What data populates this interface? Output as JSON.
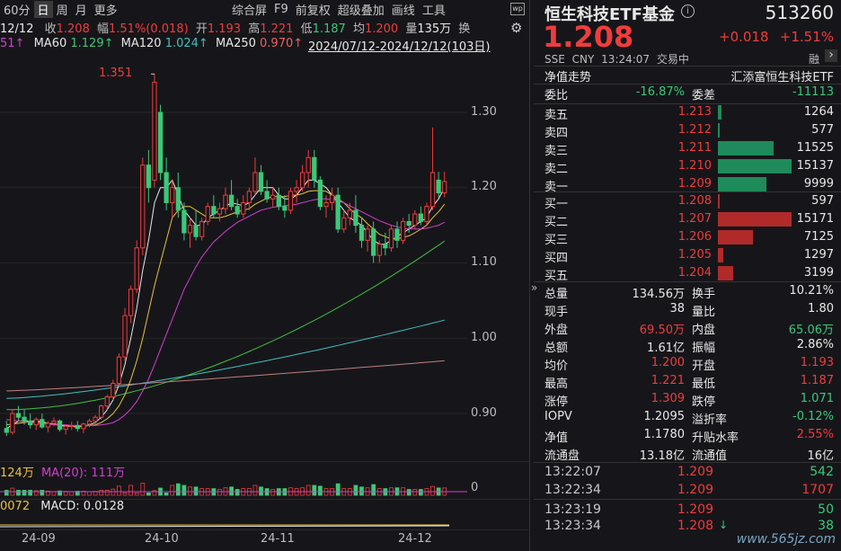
{
  "toolbar": {
    "period": "60分",
    "items": [
      "日",
      "周",
      "月",
      "更多"
    ],
    "right_items": [
      "综合屏",
      "F9",
      "前复权",
      "超级叠加",
      "画线",
      "工具"
    ],
    "badge_icon": "wp-badge-icon",
    "settings_icon": "gear-icon"
  },
  "quote_row": {
    "date": "12/12",
    "close_label": "收",
    "close": "1.208",
    "change_label": "幅",
    "change": "1.51%(0.018)",
    "open_label": "开",
    "open": "1.193",
    "high_label": "高",
    "high": "1.221",
    "low_label": "低",
    "low": "1.187",
    "avg_label": "均",
    "avg": "1.200",
    "vol_label": "量",
    "vol": "135万",
    "turnover_label": "换"
  },
  "ma_row": {
    "ma_cut": "51↑",
    "ma60_label": "MA60",
    "ma60": "1.129↑",
    "ma120_label": "MA120",
    "ma120": "1.024↑",
    "ma250_label": "MA250",
    "ma250": "0.970↑",
    "range": "2024/07/12-2024/12/12(103日)"
  },
  "chart_labels": {
    "peak_label": "1.351",
    "vol_text": "124万",
    "vol_ma": "MA(20): 111万",
    "vol_zero": "0",
    "macd_left": "0072",
    "macd_text": "MACD: 0.0128"
  },
  "colors": {
    "up": "#f03c3c",
    "down": "#3cc878",
    "ma5": "#e8e8e8",
    "ma10": "#e8c040",
    "ma20": "#d040d0",
    "ma60": "#40c040",
    "ma120": "#40c0c0",
    "ma250": "#c08080"
  },
  "chart_data": {
    "type": "candlestick",
    "ylim": [
      0.86,
      1.37
    ],
    "yticks": [
      "1.30",
      "1.20",
      "1.10",
      "1.00",
      "0.90"
    ],
    "xticks": [
      "24-09",
      "24-10",
      "24-11",
      "24-12"
    ],
    "candles": [
      {
        "o": 0.88,
        "h": 0.89,
        "l": 0.87,
        "c": 0.875
      },
      {
        "o": 0.875,
        "h": 0.905,
        "l": 0.872,
        "c": 0.9
      },
      {
        "o": 0.9,
        "h": 0.91,
        "l": 0.89,
        "c": 0.895
      },
      {
        "o": 0.895,
        "h": 0.905,
        "l": 0.885,
        "c": 0.89
      },
      {
        "o": 0.89,
        "h": 0.9,
        "l": 0.88,
        "c": 0.885
      },
      {
        "o": 0.885,
        "h": 0.895,
        "l": 0.878,
        "c": 0.892
      },
      {
        "o": 0.892,
        "h": 0.9,
        "l": 0.88,
        "c": 0.882
      },
      {
        "o": 0.882,
        "h": 0.89,
        "l": 0.875,
        "c": 0.887
      },
      {
        "o": 0.887,
        "h": 0.895,
        "l": 0.883,
        "c": 0.89
      },
      {
        "o": 0.89,
        "h": 0.892,
        "l": 0.876,
        "c": 0.879
      },
      {
        "o": 0.879,
        "h": 0.885,
        "l": 0.872,
        "c": 0.883
      },
      {
        "o": 0.883,
        "h": 0.889,
        "l": 0.878,
        "c": 0.884
      },
      {
        "o": 0.884,
        "h": 0.89,
        "l": 0.876,
        "c": 0.88
      },
      {
        "o": 0.88,
        "h": 0.888,
        "l": 0.874,
        "c": 0.886
      },
      {
        "o": 0.886,
        "h": 0.893,
        "l": 0.882,
        "c": 0.89
      },
      {
        "o": 0.89,
        "h": 0.898,
        "l": 0.885,
        "c": 0.895
      },
      {
        "o": 0.895,
        "h": 0.912,
        "l": 0.892,
        "c": 0.91
      },
      {
        "o": 0.91,
        "h": 0.925,
        "l": 0.905,
        "c": 0.922
      },
      {
        "o": 0.922,
        "h": 0.945,
        "l": 0.918,
        "c": 0.94
      },
      {
        "o": 0.94,
        "h": 0.98,
        "l": 0.935,
        "c": 0.975
      },
      {
        "o": 0.975,
        "h": 1.04,
        "l": 0.97,
        "c": 1.03
      },
      {
        "o": 1.03,
        "h": 1.07,
        "l": 1.02,
        "c": 1.065
      },
      {
        "o": 1.065,
        "h": 1.13,
        "l": 1.06,
        "c": 1.12
      },
      {
        "o": 1.12,
        "h": 1.24,
        "l": 1.11,
        "c": 1.23
      },
      {
        "o": 1.23,
        "h": 1.25,
        "l": 1.18,
        "c": 1.2
      },
      {
        "o": 1.21,
        "h": 1.351,
        "l": 1.2,
        "c": 1.34
      },
      {
        "o": 1.3,
        "h": 1.31,
        "l": 1.21,
        "c": 1.22
      },
      {
        "o": 1.22,
        "h": 1.24,
        "l": 1.17,
        "c": 1.18
      },
      {
        "o": 1.18,
        "h": 1.21,
        "l": 1.16,
        "c": 1.2
      },
      {
        "o": 1.2,
        "h": 1.22,
        "l": 1.16,
        "c": 1.17
      },
      {
        "o": 1.17,
        "h": 1.18,
        "l": 1.13,
        "c": 1.14
      },
      {
        "o": 1.14,
        "h": 1.16,
        "l": 1.12,
        "c": 1.15
      },
      {
        "o": 1.15,
        "h": 1.17,
        "l": 1.13,
        "c": 1.135
      },
      {
        "o": 1.135,
        "h": 1.16,
        "l": 1.13,
        "c": 1.155
      },
      {
        "o": 1.155,
        "h": 1.18,
        "l": 1.15,
        "c": 1.175
      },
      {
        "o": 1.175,
        "h": 1.19,
        "l": 1.16,
        "c": 1.165
      },
      {
        "o": 1.165,
        "h": 1.18,
        "l": 1.155,
        "c": 1.172
      },
      {
        "o": 1.172,
        "h": 1.2,
        "l": 1.165,
        "c": 1.19
      },
      {
        "o": 1.19,
        "h": 1.21,
        "l": 1.17,
        "c": 1.175
      },
      {
        "o": 1.175,
        "h": 1.185,
        "l": 1.16,
        "c": 1.165
      },
      {
        "o": 1.165,
        "h": 1.19,
        "l": 1.16,
        "c": 1.18
      },
      {
        "o": 1.18,
        "h": 1.2,
        "l": 1.17,
        "c": 1.195
      },
      {
        "o": 1.195,
        "h": 1.24,
        "l": 1.19,
        "c": 1.22
      },
      {
        "o": 1.22,
        "h": 1.23,
        "l": 1.19,
        "c": 1.195
      },
      {
        "o": 1.195,
        "h": 1.21,
        "l": 1.18,
        "c": 1.185
      },
      {
        "o": 1.185,
        "h": 1.2,
        "l": 1.175,
        "c": 1.19
      },
      {
        "o": 1.19,
        "h": 1.2,
        "l": 1.17,
        "c": 1.175
      },
      {
        "o": 1.175,
        "h": 1.19,
        "l": 1.16,
        "c": 1.17
      },
      {
        "o": 1.17,
        "h": 1.2,
        "l": 1.165,
        "c": 1.195
      },
      {
        "o": 1.195,
        "h": 1.21,
        "l": 1.18,
        "c": 1.2
      },
      {
        "o": 1.2,
        "h": 1.23,
        "l": 1.195,
        "c": 1.22
      },
      {
        "o": 1.22,
        "h": 1.25,
        "l": 1.2,
        "c": 1.24
      },
      {
        "o": 1.24,
        "h": 1.25,
        "l": 1.2,
        "c": 1.21
      },
      {
        "o": 1.21,
        "h": 1.215,
        "l": 1.17,
        "c": 1.175
      },
      {
        "o": 1.175,
        "h": 1.19,
        "l": 1.16,
        "c": 1.18
      },
      {
        "o": 1.18,
        "h": 1.2,
        "l": 1.17,
        "c": 1.19
      },
      {
        "o": 1.19,
        "h": 1.2,
        "l": 1.14,
        "c": 1.145
      },
      {
        "o": 1.145,
        "h": 1.17,
        "l": 1.14,
        "c": 1.16
      },
      {
        "o": 1.16,
        "h": 1.18,
        "l": 1.15,
        "c": 1.17
      },
      {
        "o": 1.17,
        "h": 1.19,
        "l": 1.14,
        "c": 1.15
      },
      {
        "o": 1.15,
        "h": 1.16,
        "l": 1.12,
        "c": 1.13
      },
      {
        "o": 1.13,
        "h": 1.15,
        "l": 1.115,
        "c": 1.145
      },
      {
        "o": 1.145,
        "h": 1.155,
        "l": 1.1,
        "c": 1.11
      },
      {
        "o": 1.11,
        "h": 1.13,
        "l": 1.1,
        "c": 1.125
      },
      {
        "o": 1.125,
        "h": 1.14,
        "l": 1.11,
        "c": 1.12
      },
      {
        "o": 1.12,
        "h": 1.15,
        "l": 1.115,
        "c": 1.145
      },
      {
        "o": 1.145,
        "h": 1.155,
        "l": 1.12,
        "c": 1.13
      },
      {
        "o": 1.13,
        "h": 1.16,
        "l": 1.125,
        "c": 1.155
      },
      {
        "o": 1.155,
        "h": 1.165,
        "l": 1.14,
        "c": 1.15
      },
      {
        "o": 1.15,
        "h": 1.17,
        "l": 1.145,
        "c": 1.165
      },
      {
        "o": 1.165,
        "h": 1.175,
        "l": 1.15,
        "c": 1.155
      },
      {
        "o": 1.155,
        "h": 1.18,
        "l": 1.15,
        "c": 1.175
      },
      {
        "o": 1.175,
        "h": 1.28,
        "l": 1.17,
        "c": 1.22
      },
      {
        "o": 1.21,
        "h": 1.221,
        "l": 1.187,
        "c": 1.193
      },
      {
        "o": 1.193,
        "h": 1.221,
        "l": 1.187,
        "c": 1.208
      }
    ],
    "ma_lines": [
      {
        "name": "MA5",
        "values": [
          0.88,
          0.885,
          0.89,
          0.89,
          0.89,
          0.89,
          0.889,
          0.887,
          0.886,
          0.884,
          0.883,
          0.883,
          0.882,
          0.883,
          0.885,
          0.888,
          0.895,
          0.905,
          0.918,
          0.938,
          0.965,
          1.0,
          1.04,
          1.09,
          1.13,
          1.18,
          1.2,
          1.2,
          1.21,
          1.19,
          1.17,
          1.16,
          1.15,
          1.15,
          1.16,
          1.165,
          1.17,
          1.175,
          1.18,
          1.178,
          1.176,
          1.18,
          1.19,
          1.2,
          1.2,
          1.2,
          1.19,
          1.185,
          1.185,
          1.19,
          1.2,
          1.21,
          1.21,
          1.205,
          1.2,
          1.19,
          1.18,
          1.17,
          1.16,
          1.155,
          1.15,
          1.14,
          1.13,
          1.125,
          1.125,
          1.13,
          1.135,
          1.14,
          1.145,
          1.15,
          1.155,
          1.16,
          1.175,
          1.185,
          1.2
        ]
      },
      {
        "name": "MA10",
        "values": [
          0.885,
          0.886,
          0.887,
          0.888,
          0.889,
          0.889,
          0.888,
          0.887,
          0.886,
          0.885,
          0.884,
          0.883,
          0.883,
          0.883,
          0.884,
          0.885,
          0.888,
          0.893,
          0.9,
          0.91,
          0.925,
          0.945,
          0.97,
          1.0,
          1.035,
          1.07,
          1.1,
          1.13,
          1.16,
          1.17,
          1.175,
          1.175,
          1.17,
          1.165,
          1.16,
          1.16,
          1.16,
          1.162,
          1.165,
          1.168,
          1.17,
          1.172,
          1.178,
          1.182,
          1.186,
          1.188,
          1.188,
          1.188,
          1.19,
          1.19,
          1.192,
          1.195,
          1.196,
          1.196,
          1.195,
          1.19,
          1.185,
          1.18,
          1.172,
          1.165,
          1.16,
          1.152,
          1.145,
          1.138,
          1.135,
          1.132,
          1.132,
          1.134,
          1.136,
          1.14,
          1.145,
          1.15,
          1.16,
          1.168,
          1.178
        ]
      },
      {
        "name": "MA20",
        "values": [
          0.892,
          0.891,
          0.89,
          0.889,
          0.888,
          0.887,
          0.886,
          0.886,
          0.885,
          0.885,
          0.885,
          0.884,
          0.884,
          0.884,
          0.884,
          0.884,
          0.885,
          0.886,
          0.888,
          0.892,
          0.898,
          0.906,
          0.916,
          0.93,
          0.946,
          0.965,
          0.985,
          1.005,
          1.025,
          1.045,
          1.065,
          1.08,
          1.095,
          1.108,
          1.118,
          1.128,
          1.135,
          1.142,
          1.148,
          1.154,
          1.158,
          1.162,
          1.166,
          1.17,
          1.172,
          1.174,
          1.175,
          1.176,
          1.177,
          1.178,
          1.18,
          1.182,
          1.184,
          1.185,
          1.185,
          1.184,
          1.182,
          1.18,
          1.176,
          1.172,
          1.168,
          1.164,
          1.16,
          1.156,
          1.153,
          1.15,
          1.148,
          1.146,
          1.145,
          1.145,
          1.145,
          1.146,
          1.148,
          1.15,
          1.154
        ]
      }
    ],
    "ma_long": [
      {
        "name": "MA60",
        "start": 0.905,
        "end": 1.129
      },
      {
        "name": "MA120",
        "start": 0.92,
        "end": 1.024
      },
      {
        "name": "MA250",
        "start": 0.93,
        "end": 0.97
      }
    ]
  },
  "header": {
    "title": "恒生科技ETF基金",
    "info_icon": "info-icon",
    "code": "513260",
    "price": "1.208",
    "change": "+0.018",
    "change_pct": "+1.51%",
    "exchange": "SSE",
    "currency": "CNY",
    "time": "13:24:07",
    "status": "交易中",
    "margin_tag": "融",
    "nav_trend": "净值走势",
    "full_name": "汇添富恒生科技ETF"
  },
  "commission": {
    "ratio_label": "委比",
    "ratio": "-16.87%",
    "diff_label": "委差",
    "diff": "-11113"
  },
  "order_book": {
    "asks": [
      {
        "label": "卖五",
        "price": "1.213",
        "vol": "1264",
        "frac": 0.05
      },
      {
        "label": "卖四",
        "price": "1.212",
        "vol": "577",
        "frac": 0.02
      },
      {
        "label": "卖三",
        "price": "1.211",
        "vol": "11525",
        "frac": 0.72
      },
      {
        "label": "卖二",
        "price": "1.210",
        "vol": "15137",
        "frac": 0.95
      },
      {
        "label": "卖一",
        "price": "1.209",
        "vol": "9999",
        "frac": 0.63
      }
    ],
    "bids": [
      {
        "label": "买一",
        "price": "1.208",
        "vol": "597",
        "frac": 0.02
      },
      {
        "label": "买二",
        "price": "1.207",
        "vol": "15171",
        "frac": 0.95
      },
      {
        "label": "买三",
        "price": "1.206",
        "vol": "7125",
        "frac": 0.45
      },
      {
        "label": "买四",
        "price": "1.205",
        "vol": "1297",
        "frac": 0.07
      },
      {
        "label": "买五",
        "price": "1.204",
        "vol": "3199",
        "frac": 0.2
      }
    ]
  },
  "stats": [
    {
      "l1": "总量",
      "v1": "134.56万",
      "c1": "white",
      "l2": "换手",
      "v2": "10.21%",
      "c2": "white"
    },
    {
      "l1": "现手",
      "v1": "38",
      "c1": "white",
      "l2": "量比",
      "v2": "1.80",
      "c2": "white"
    },
    {
      "l1": "外盘",
      "v1": "69.50万",
      "c1": "red",
      "l2": "内盘",
      "v2": "65.06万",
      "c2": "green"
    },
    {
      "l1": "总额",
      "v1": "1.61亿",
      "c1": "white",
      "l2": "振幅",
      "v2": "2.86%",
      "c2": "white"
    },
    {
      "l1": "均价",
      "v1": "1.200",
      "c1": "red",
      "l2": "开盘",
      "v2": "1.193",
      "c2": "red"
    },
    {
      "l1": "最高",
      "v1": "1.221",
      "c1": "red",
      "l2": "最低",
      "v2": "1.187",
      "c2": "red"
    },
    {
      "l1": "涨停",
      "v1": "1.309",
      "c1": "red",
      "l2": "跌停",
      "v2": "1.071",
      "c2": "green"
    },
    {
      "l1": "IOPV",
      "v1": "1.2095",
      "c1": "white",
      "l2": "溢折率",
      "v2": "-0.12%",
      "c2": "green"
    },
    {
      "l1": "净值",
      "v1": "1.1780",
      "c1": "white",
      "l2": "升贴水率",
      "v2": "2.55%",
      "c2": "red"
    },
    {
      "l1": "流通盘",
      "v1": "13.18亿",
      "c1": "white",
      "l2": "流通值",
      "v2": "16亿",
      "c2": "white"
    }
  ],
  "ticks": [
    {
      "t": "13:22:07",
      "p": "1.209",
      "v": "542",
      "pc": "red",
      "vc": "green",
      "arrow": ""
    },
    {
      "t": "13:22:34",
      "p": "1.209",
      "v": "1707",
      "pc": "red",
      "vc": "red",
      "arrow": ""
    },
    {
      "t": "13:23:19",
      "p": "1.209",
      "v": "50",
      "pc": "red",
      "vc": "green",
      "arrow": ""
    },
    {
      "t": "13:23:34",
      "p": "1.208",
      "v": "38",
      "pc": "red",
      "vc": "green",
      "arrow": "↓"
    }
  ],
  "side_arrows": {
    "collapse": "»",
    "expand": "›"
  },
  "watermark": "www.565jz.com"
}
